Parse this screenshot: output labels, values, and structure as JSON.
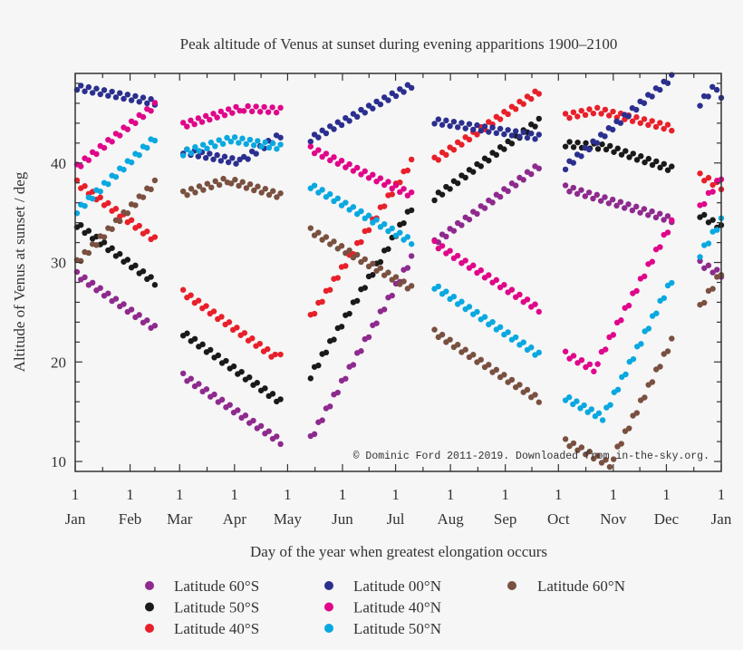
{
  "chart_data": {
    "type": "scatter",
    "title": "Peak altitude of Venus at sunset during evening apparitions 1900–2100",
    "xlabel": "Day of the year when greatest elongation occurs",
    "ylabel": "Altitude of Venus at sunset / deg",
    "xlim": [
      0,
      365
    ],
    "ylim": [
      9,
      49
    ],
    "grid": false,
    "legend_placement": "bottom",
    "y_ticks": [
      10,
      20,
      30,
      40
    ],
    "x_ticks": [
      {
        "day": 0,
        "top": "1",
        "bottom": "Jan"
      },
      {
        "day": 31,
        "top": "1",
        "bottom": "Feb"
      },
      {
        "day": 59,
        "top": "1",
        "bottom": "Mar"
      },
      {
        "day": 90,
        "top": "1",
        "bottom": "Apr"
      },
      {
        "day": 120,
        "top": "1",
        "bottom": "May"
      },
      {
        "day": 151,
        "top": "1",
        "bottom": "Jun"
      },
      {
        "day": 181,
        "top": "1",
        "bottom": "Jul"
      },
      {
        "day": 212,
        "top": "1",
        "bottom": "Aug"
      },
      {
        "day": 243,
        "top": "1",
        "bottom": "Sep"
      },
      {
        "day": 273,
        "top": "1",
        "bottom": "Oct"
      },
      {
        "day": 304,
        "top": "1",
        "bottom": "Nov"
      },
      {
        "day": 334,
        "top": "1",
        "bottom": "Dec"
      },
      {
        "day": 365,
        "top": "1",
        "bottom": "Jan"
      }
    ],
    "annotation": "© Dominic Ford 2011-2019. Downloaded from in-the-sky.org.",
    "series": [
      {
        "name": "Latitude 60°S",
        "color": "#8e2a8e",
        "segments": [
          [
            [
              1,
              28.8
            ],
            [
              45,
              23.4
            ]
          ],
          [
            [
              61,
              18.6
            ],
            [
              116,
              12.0
            ]
          ],
          [
            [
              133,
              12.3
            ],
            [
              190,
              30.4
            ]
          ],
          [
            [
              203,
              32.0
            ],
            [
              262,
              39.7
            ]
          ],
          [
            [
              277,
              37.5
            ],
            [
              337,
              34.3
            ]
          ],
          [
            [
              353,
              29.9
            ],
            [
              365,
              28.8
            ]
          ]
        ]
      },
      {
        "name": "Latitude 50°S",
        "color": "#1a1a1a",
        "segments": [
          [
            [
              1,
              33.8
            ],
            [
              45,
              28.0
            ]
          ],
          [
            [
              61,
              22.9
            ],
            [
              116,
              16.0
            ]
          ],
          [
            [
              133,
              18.6
            ],
            [
              190,
              35.5
            ]
          ],
          [
            [
              203,
              36.5
            ],
            [
              262,
              44.2
            ]
          ],
          [
            [
              277,
              41.9
            ],
            [
              300,
              41.6
            ],
            [
              337,
              39.4
            ]
          ],
          [
            [
              353,
              34.8
            ],
            [
              365,
              33.5
            ]
          ]
        ]
      },
      {
        "name": "Latitude 40°S",
        "color": "#e8202a",
        "segments": [
          [
            [
              1,
              38.0
            ],
            [
              45,
              32.3
            ]
          ],
          [
            [
              61,
              27.0
            ],
            [
              113,
              20.5
            ],
            [
              116,
              21.0
            ]
          ],
          [
            [
              133,
              24.5
            ],
            [
              190,
              40.1
            ]
          ],
          [
            [
              203,
              40.3
            ],
            [
              262,
              47.2
            ]
          ],
          [
            [
              277,
              44.7
            ],
            [
              295,
              45.3
            ],
            [
              337,
              43.5
            ]
          ],
          [
            [
              353,
              38.7
            ],
            [
              365,
              37.6
            ]
          ]
        ]
      },
      {
        "name": "Latitude 00°N",
        "color": "#2b2f8f",
        "segments": [
          [
            [
              1,
              47.6
            ],
            [
              45,
              46.1
            ]
          ],
          [
            [
              61,
              41.2
            ],
            [
              93,
              40.1
            ],
            [
              116,
              42.8
            ]
          ],
          [
            [
              133,
              42.4
            ],
            [
              190,
              47.8
            ]
          ],
          [
            [
              203,
              44.2
            ],
            [
              262,
              42.6
            ]
          ],
          [
            [
              277,
              39.6
            ],
            [
              337,
              48.6
            ]
          ],
          [
            [
              353,
              46.0
            ],
            [
              360,
              47.4
            ],
            [
              365,
              46.8
            ]
          ]
        ]
      },
      {
        "name": "Latitude 40°N",
        "color": "#e0068a",
        "segments": [
          [
            [
              1,
              39.6
            ],
            [
              45,
              45.8
            ]
          ],
          [
            [
              61,
              43.8
            ],
            [
              93,
              45.5
            ],
            [
              116,
              45.3
            ]
          ],
          [
            [
              133,
              41.4
            ],
            [
              190,
              36.8
            ]
          ],
          [
            [
              203,
              31.9
            ],
            [
              262,
              25.3
            ]
          ],
          [
            [
              277,
              20.8
            ],
            [
              293,
              19.3
            ],
            [
              337,
              34.0
            ]
          ],
          [
            [
              353,
              35.5
            ],
            [
              365,
              38.6
            ]
          ]
        ]
      },
      {
        "name": "Latitude 50°N",
        "color": "#0aa8e0",
        "segments": [
          [
            [
              1,
              35.2
            ],
            [
              45,
              42.5
            ]
          ],
          [
            [
              61,
              41.0
            ],
            [
              88,
              42.4
            ],
            [
              116,
              41.6
            ]
          ],
          [
            [
              133,
              37.7
            ],
            [
              190,
              32.1
            ]
          ],
          [
            [
              203,
              27.6
            ],
            [
              262,
              20.7
            ]
          ],
          [
            [
              277,
              16.4
            ],
            [
              298,
              14.4
            ],
            [
              337,
              28.2
            ]
          ],
          [
            [
              353,
              30.8
            ],
            [
              365,
              34.2
            ]
          ]
        ]
      },
      {
        "name": "Latitude 60°N",
        "color": "#7a5040",
        "segments": [
          [
            [
              1,
              30.0
            ],
            [
              45,
              38.0
            ]
          ],
          [
            [
              61,
              36.9
            ],
            [
              86,
              38.3
            ],
            [
              116,
              36.7
            ]
          ],
          [
            [
              133,
              33.2
            ],
            [
              190,
              27.4
            ]
          ],
          [
            [
              203,
              23.0
            ],
            [
              262,
              16.2
            ]
          ],
          [
            [
              277,
              12.0
            ],
            [
              302,
              9.7
            ],
            [
              337,
              22.1
            ]
          ],
          [
            [
              353,
              25.5
            ],
            [
              365,
              29.0
            ]
          ]
        ]
      }
    ]
  }
}
